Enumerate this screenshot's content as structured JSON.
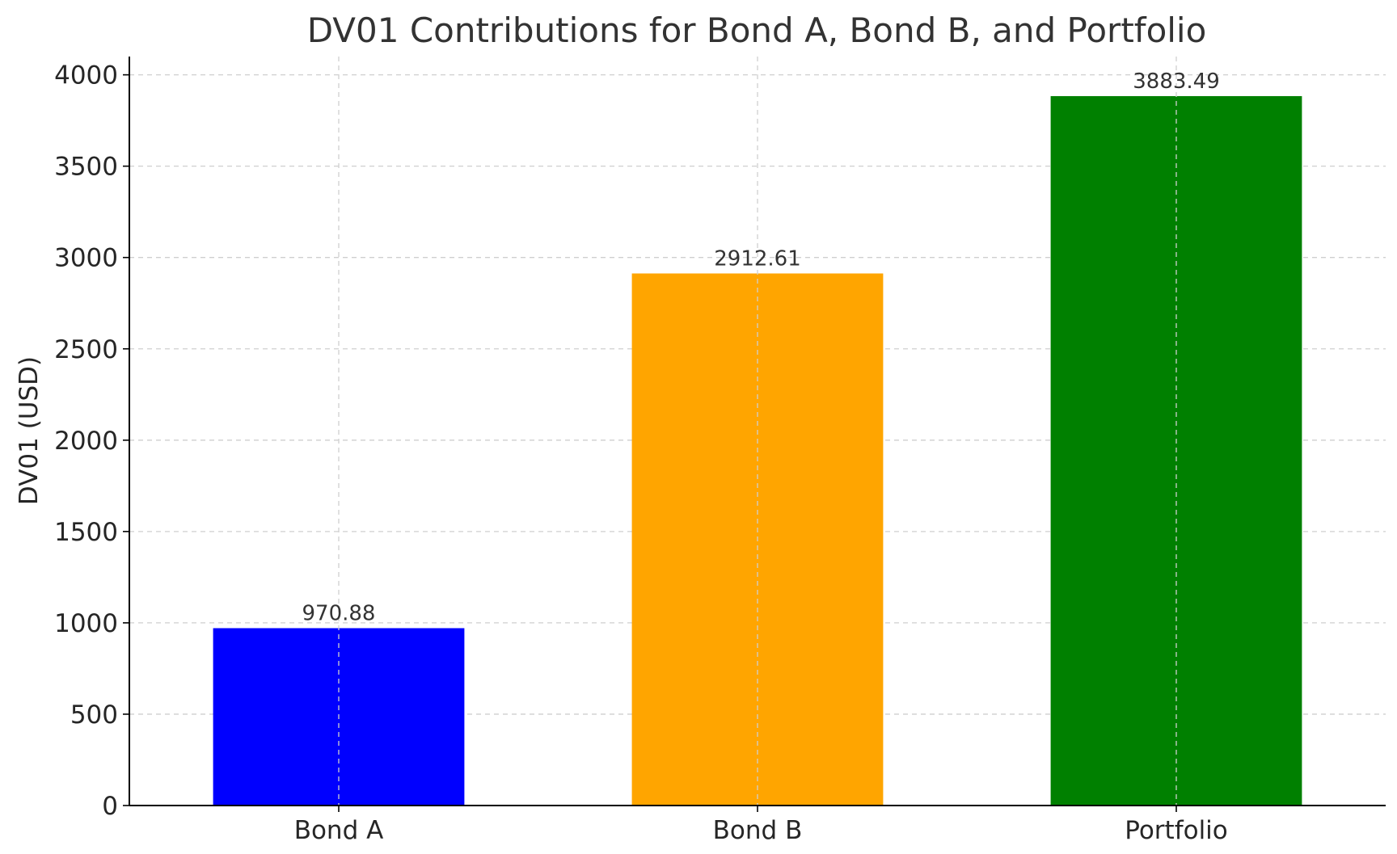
{
  "chart_data": {
    "type": "bar",
    "title": "DV01 Contributions for Bond A, Bond B, and Portfolio",
    "xlabel": "",
    "ylabel": "DV01 (USD)",
    "categories": [
      "Bond A",
      "Bond B",
      "Portfolio"
    ],
    "values": [
      970.88,
      2912.61,
      3883.49
    ],
    "value_labels": [
      "970.88",
      "2912.61",
      "3883.49"
    ],
    "colors": [
      "#0000ff",
      "#ffa500",
      "#008000"
    ],
    "ylim": [
      0,
      4100
    ],
    "yticks": [
      0,
      500,
      1000,
      1500,
      2000,
      2500,
      3000,
      3500,
      4000
    ],
    "grid": true,
    "legend": false
  }
}
